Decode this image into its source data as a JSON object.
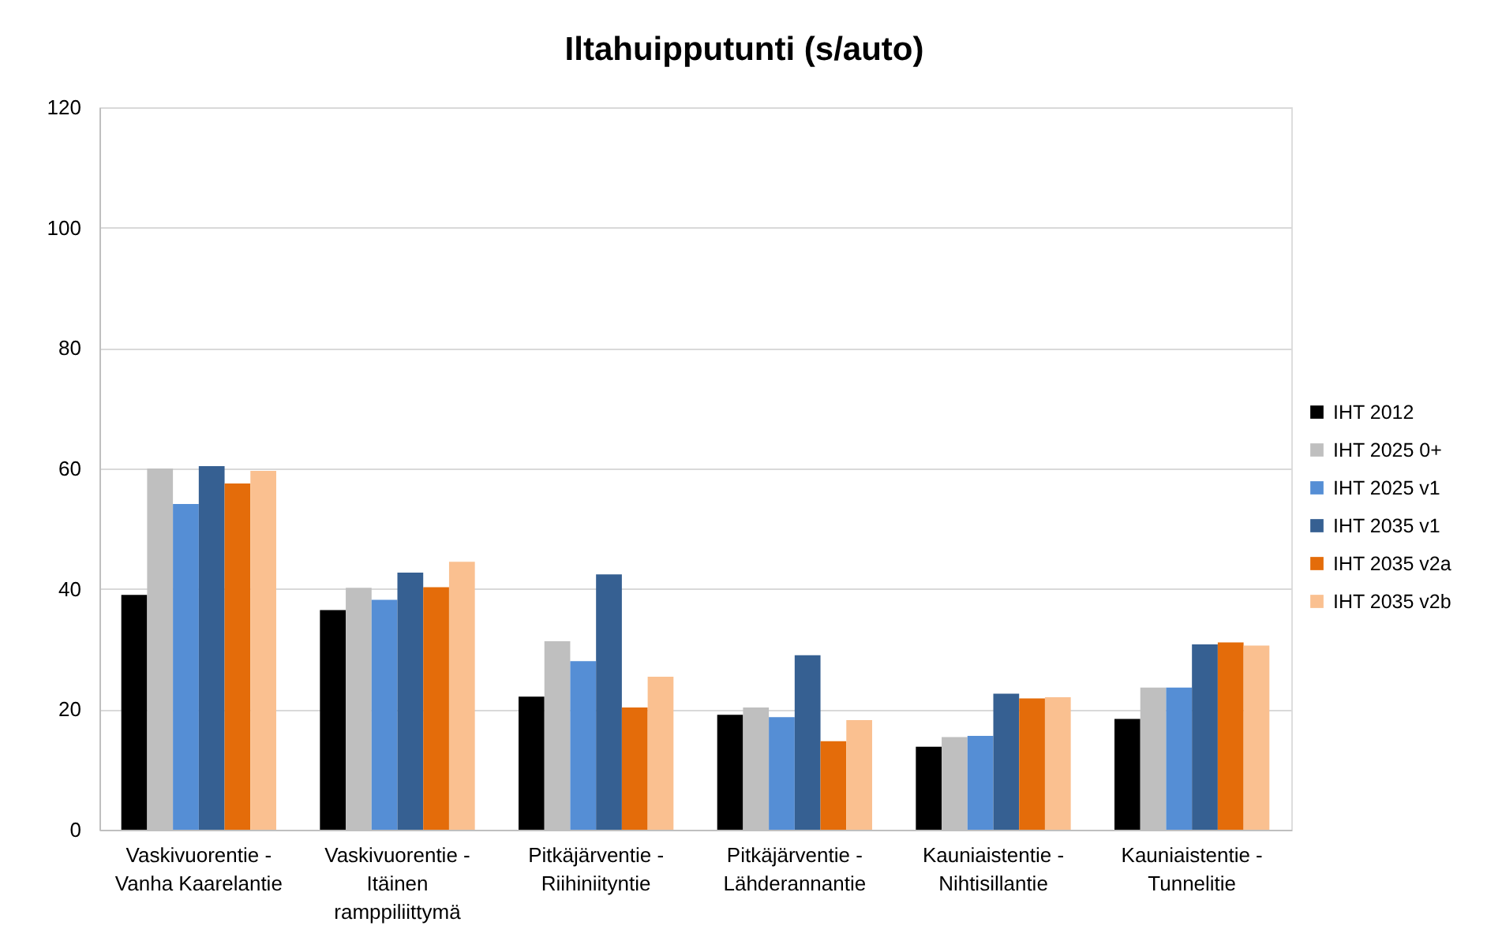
{
  "chart_data": {
    "type": "bar",
    "title": "Iltahuipputunti (s/auto)",
    "categories": [
      "Vaskivuorentie - Vanha Kaarelantie",
      "Vaskivuorentie - Itäinen ramppiliittymä",
      "Pitkäjärventie - Riihiniityntie",
      "Pitkäjärventie - Lähderannantie",
      "Kauniaistentie - Nihtisillantie",
      "Kauniaistentie - Tunnelitie"
    ],
    "series": [
      {
        "name": "IHT 2012",
        "color": "#000000",
        "values": [
          39.0,
          36.5,
          22.1,
          19.1,
          13.8,
          18.4
        ]
      },
      {
        "name": "IHT 2025 0+",
        "color": "#bfbfbf",
        "values": [
          60.0,
          40.2,
          31.3,
          20.3,
          15.4,
          23.6
        ]
      },
      {
        "name": "IHT 2025 v1",
        "color": "#558ed5",
        "values": [
          54.1,
          38.2,
          28.0,
          18.7,
          15.6,
          23.6
        ]
      },
      {
        "name": "IHT 2035 v1",
        "color": "#366092",
        "values": [
          60.4,
          42.7,
          42.4,
          29.0,
          22.6,
          30.8
        ]
      },
      {
        "name": "IHT 2035 v2a",
        "color": "#e46c0a",
        "values": [
          57.5,
          40.3,
          20.3,
          14.7,
          21.8,
          31.1
        ]
      },
      {
        "name": "IHT 2035 v2b",
        "color": "#fac090",
        "values": [
          59.6,
          44.5,
          25.4,
          18.2,
          22.0,
          30.6
        ]
      }
    ],
    "ylim": [
      0,
      120
    ],
    "yticks": [
      0,
      20,
      40,
      60,
      80,
      100,
      120
    ],
    "grid": "y",
    "legend": "right"
  }
}
